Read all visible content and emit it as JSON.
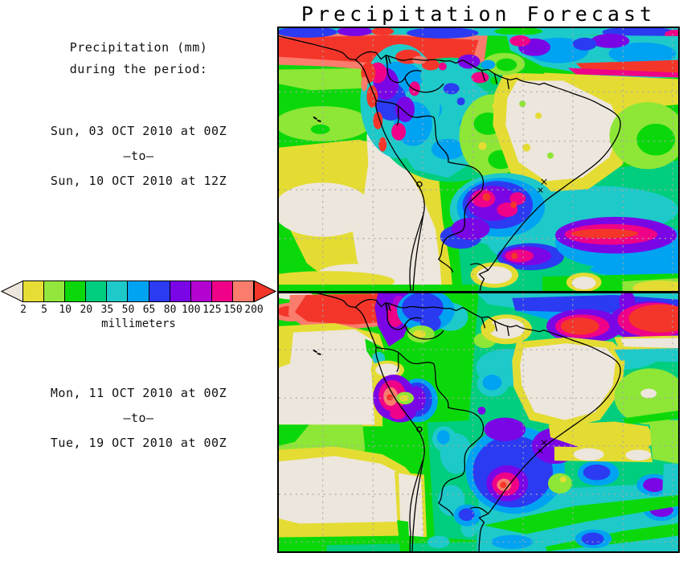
{
  "title": "Precipitation Forecast",
  "sidebar": {
    "heading_line1": "Precipitation (mm)",
    "heading_line2": "during the period:",
    "period1": {
      "start": "Sun, 03 OCT 2010 at 00Z",
      "separator": "–to–",
      "end": "Sun, 10 OCT 2010 at 12Z"
    },
    "period2": {
      "start": "Mon, 11 OCT 2010 at 00Z",
      "separator": "–to–",
      "end": "Tue, 19 OCT 2010 at 00Z"
    }
  },
  "legend": {
    "unit_label": "millimeters",
    "below_min_color": "#EDE6DC",
    "above_max_color": "#F4362A",
    "segments": [
      {
        "label": "2",
        "color": "#E6DE35"
      },
      {
        "label": "5",
        "color": "#93E63C"
      },
      {
        "label": "10",
        "color": "#0BD80B"
      },
      {
        "label": "20",
        "color": "#00CE7E"
      },
      {
        "label": "35",
        "color": "#1EC9C9"
      },
      {
        "label": "50",
        "color": "#00A3F2"
      },
      {
        "label": "65",
        "color": "#2B3BF2"
      },
      {
        "label": "80",
        "color": "#7A06E6"
      },
      {
        "label": "100",
        "color": "#B303D1"
      },
      {
        "label": "125",
        "color": "#EF0287"
      },
      {
        "label": "150",
        "color": "#F97C6C"
      }
    ],
    "end_tick_label": "200"
  }
}
